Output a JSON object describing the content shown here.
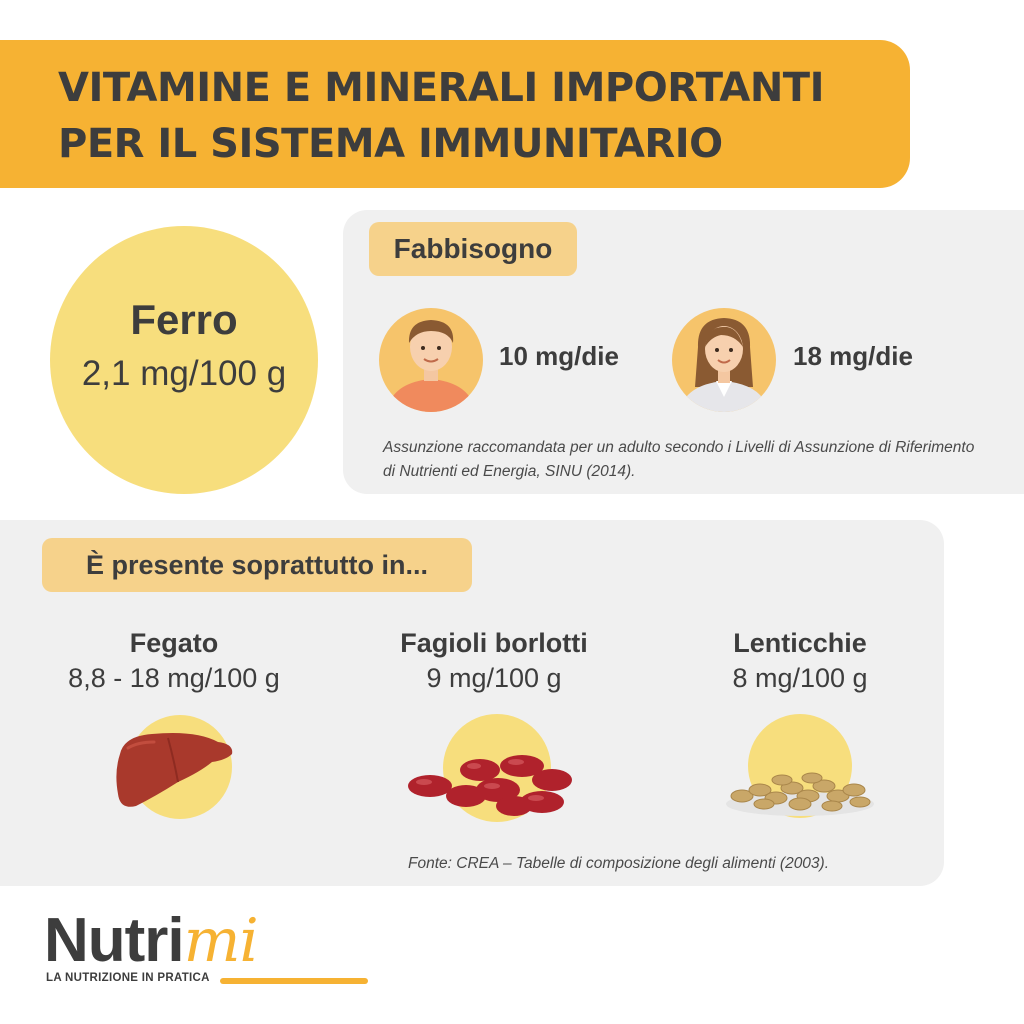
{
  "header": {
    "title_line1": "VITAMINE E MINERALI IMPORTANTI",
    "title_line2": "PER IL SISTEMA IMMUNITARIO"
  },
  "mineral": {
    "name": "Ferro",
    "amount": "2,1 mg/100 g"
  },
  "needs": {
    "label": "Fabbisogno",
    "male_dose": "10 mg/die",
    "female_dose": "18 mg/die",
    "male_icon": "man-avatar-icon",
    "female_icon": "woman-avatar-icon",
    "note": "Assunzione raccomandata per un adulto secondo i Livelli di Assunzione di Riferimento di Nutrienti ed Energia, SINU (2014)."
  },
  "foods": {
    "label": "È presente soprattutto in...",
    "items": [
      {
        "name": "Fegato",
        "value": "8,8 - 18 mg/100 g",
        "icon": "liver-icon"
      },
      {
        "name": "Fagioli borlotti",
        "value": "9 mg/100 g",
        "icon": "beans-icon"
      },
      {
        "name": "Lenticchie",
        "value": "8 mg/100 g",
        "icon": "lentils-icon"
      }
    ],
    "source": "Fonte: CREA – Tabelle di composizione degli alimenti (2003)."
  },
  "logo": {
    "word_main": "Nutri",
    "word_accent": "mi",
    "tagline": "LA NUTRIZIONE IN PRATICA"
  },
  "colors": {
    "accent": "#f6b233",
    "circle": "#f7de7d",
    "pill": "#f6d28b",
    "panel": "#f0f0f0",
    "text": "#3d3d3d"
  }
}
